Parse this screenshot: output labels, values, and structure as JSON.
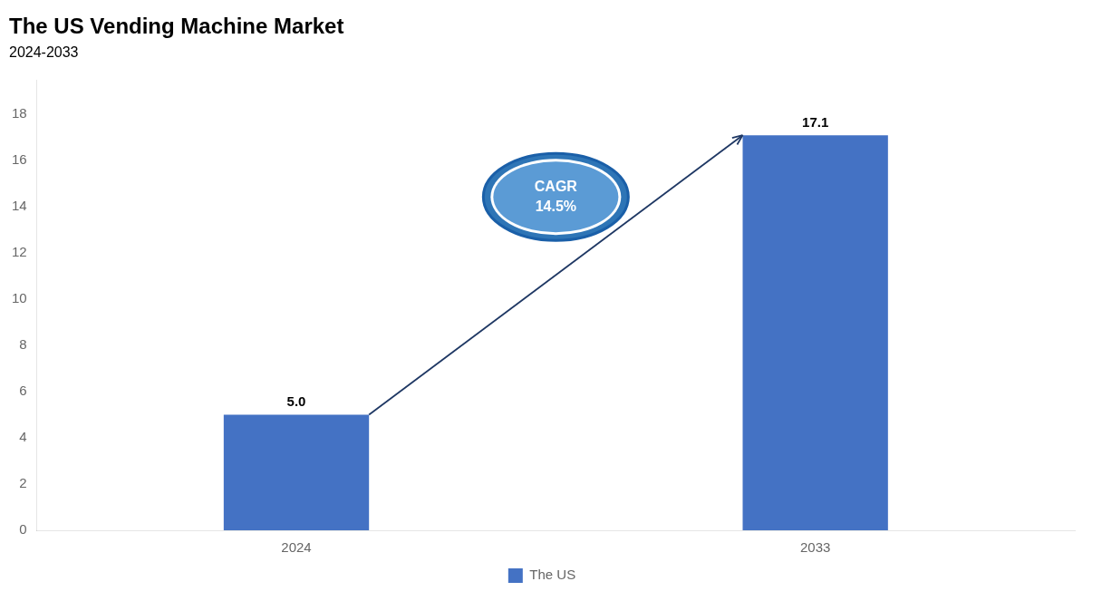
{
  "chart_data": {
    "type": "bar",
    "title": "The US Vending Machine Market",
    "subtitle": "2024-2033",
    "categories": [
      "2024",
      "2033"
    ],
    "series": [
      {
        "name": "The US",
        "color": "#4472C4",
        "values": [
          5.0,
          17.1
        ]
      }
    ],
    "value_labels": [
      "5.0",
      "17.1"
    ],
    "data_labels": true,
    "annotation": "CAGR\n14.5%",
    "ylim": [
      0,
      19.5
    ],
    "yticks": [
      0,
      2,
      4,
      6,
      8,
      10,
      12,
      14,
      16,
      18
    ],
    "grid": false,
    "legend": "bottom"
  }
}
